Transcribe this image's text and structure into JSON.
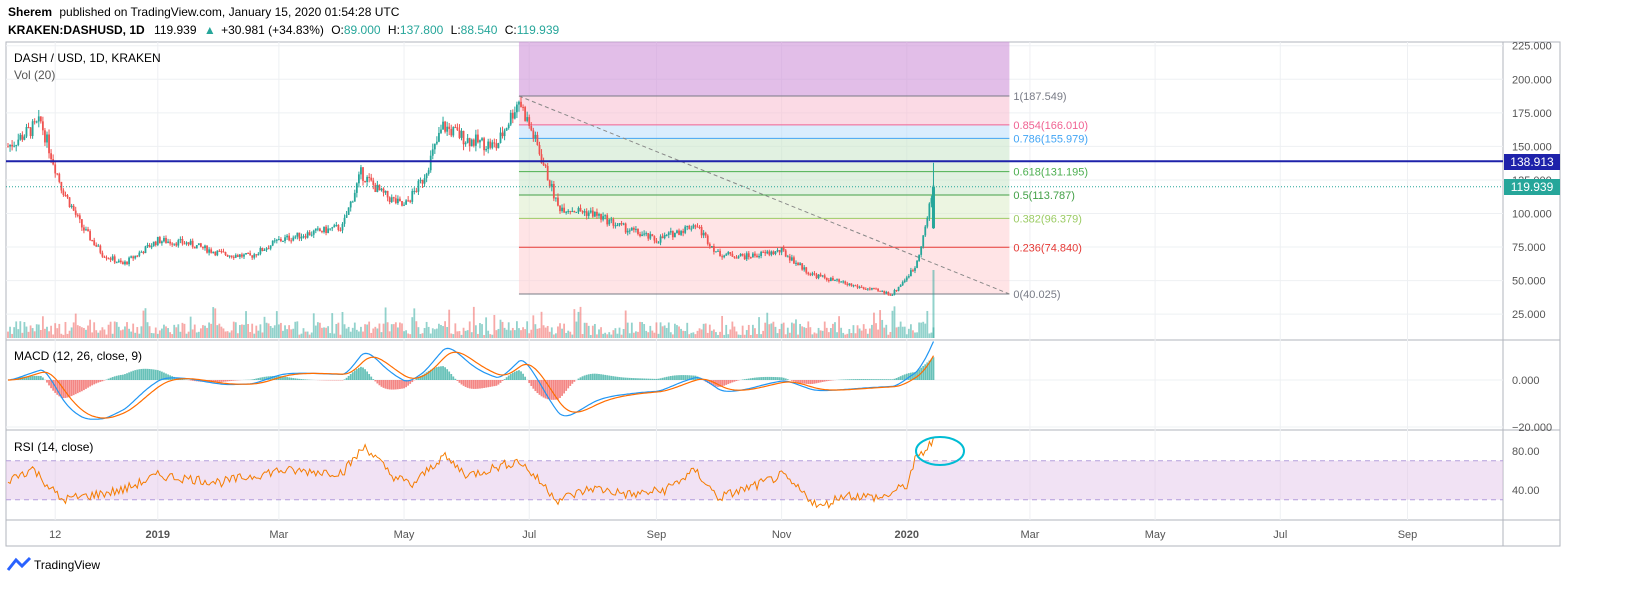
{
  "header": {
    "author": "Sherem",
    "published_text": "published on TradingView.com, January 15, 2020 01:54:28 UTC",
    "symbol": "KRAKEN:DASHUSD, 1D",
    "last": "119.939",
    "change": "+30.981 (+34.83%)",
    "o_label": "O:",
    "o": "89.000",
    "h_label": "H:",
    "h": "137.800",
    "l_label": "L:",
    "l": "88.540",
    "c_label": "C:",
    "c": "119.939"
  },
  "main_pane": {
    "title": "DASH / USD, 1D, KRAKEN",
    "vol_label": "Vol (20)",
    "price_badge_hline": "138.913",
    "price_badge_last": "119.939"
  },
  "macd_pane": {
    "title": "MACD (12, 26, close, 9)"
  },
  "rsi_pane": {
    "title": "RSI (14, close)"
  },
  "footer": {
    "brand": "TradingView"
  },
  "colors": {
    "up": "#26a69a",
    "down": "#ef5350",
    "macd": "#2196f3",
    "signal": "#ff6d00",
    "rsi": "#f57c00",
    "hline": "#1e22aa",
    "annotation": "#00bcd4"
  },
  "chart_data": [
    {
      "type": "candlestick",
      "pane": "price",
      "title": "DASH / USD, 1D, KRAKEN",
      "y_ticks": [
        "225.000",
        "200.000",
        "175.000",
        "150.000",
        "125.000",
        "100.000",
        "75.000",
        "50.000",
        "25.000"
      ],
      "ylim": [
        10,
        228
      ],
      "x_ticks": [
        "12",
        "2019",
        "Mar",
        "May",
        "Jul",
        "Sep",
        "Nov",
        "2020",
        "Mar",
        "May",
        "Jul",
        "Sep"
      ],
      "series_points": [
        [
          "2018-10-20",
          150
        ],
        [
          "2018-11-05",
          168
        ],
        [
          "2018-11-15",
          120
        ],
        [
          "2018-11-25",
          90
        ],
        [
          "2018-12-05",
          70
        ],
        [
          "2018-12-15",
          62
        ],
        [
          "2019-01-01",
          80
        ],
        [
          "2019-01-15",
          78
        ],
        [
          "2019-02-01",
          70
        ],
        [
          "2019-02-15",
          68
        ],
        [
          "2019-03-01",
          80
        ],
        [
          "2019-03-15",
          85
        ],
        [
          "2019-04-01",
          90
        ],
        [
          "2019-04-10",
          130
        ],
        [
          "2019-04-20",
          115
        ],
        [
          "2019-05-01",
          105
        ],
        [
          "2019-05-10",
          125
        ],
        [
          "2019-05-20",
          165
        ],
        [
          "2019-06-01",
          155
        ],
        [
          "2019-06-15",
          150
        ],
        [
          "2019-06-26",
          185
        ],
        [
          "2019-07-05",
          150
        ],
        [
          "2019-07-15",
          105
        ],
        [
          "2019-08-01",
          100
        ],
        [
          "2019-08-15",
          90
        ],
        [
          "2019-09-01",
          80
        ],
        [
          "2019-09-20",
          92
        ],
        [
          "2019-10-01",
          70
        ],
        [
          "2019-10-15",
          68
        ],
        [
          "2019-11-01",
          72
        ],
        [
          "2019-11-15",
          55
        ],
        [
          "2019-12-01",
          48
        ],
        [
          "2019-12-15",
          43
        ],
        [
          "2019-12-25",
          40
        ],
        [
          "2020-01-05",
          60
        ],
        [
          "2020-01-10",
          89
        ],
        [
          "2020-01-14",
          119.939
        ]
      ],
      "volume_note": "Vol (20)",
      "horizontal_line": 138.913,
      "last_price": 119.939,
      "fibonacci": {
        "levels": [
          {
            "label": "1(187.549)",
            "value": 187.549,
            "color": "#787b86"
          },
          {
            "label": "0.854(166.010)",
            "value": 166.01,
            "color": "#f06292"
          },
          {
            "label": "0.786(155.979)",
            "value": 155.979,
            "color": "#42a5f5"
          },
          {
            "label": "0.618(131.195)",
            "value": 131.195,
            "color": "#4caf50"
          },
          {
            "label": "0.5(113.787)",
            "value": 113.787,
            "color": "#43a047"
          },
          {
            "label": "0.382(96.379)",
            "value": 96.379,
            "color": "#9ccc65"
          },
          {
            "label": "0.236(74.840)",
            "value": 74.84,
            "color": "#e53935"
          },
          {
            "label": "0(40.025)",
            "value": 40.025,
            "color": "#787b86"
          }
        ],
        "start": "2019-06-26",
        "end": "2020-02-20"
      },
      "trendline": [
        [
          "2019-06-26",
          187.549
        ],
        [
          "2020-02-20",
          40.025
        ]
      ]
    },
    {
      "type": "line",
      "pane": "macd",
      "title": "MACD (12, 26, close, 9)",
      "y_ticks": [
        "0.000",
        "−20.000"
      ],
      "ylim": [
        -23,
        20
      ]
    },
    {
      "type": "line",
      "pane": "rsi",
      "title": "RSI (14, close)",
      "y_ticks": [
        "80.00",
        "40.00"
      ],
      "ylim": [
        12,
        97
      ],
      "band": [
        30,
        70
      ],
      "points": [
        [
          "2018-10-20",
          50
        ],
        [
          "2018-11-01",
          62
        ],
        [
          "2018-11-15",
          30
        ],
        [
          "2018-12-01",
          35
        ],
        [
          "2018-12-15",
          40
        ],
        [
          "2019-01-01",
          55
        ],
        [
          "2019-02-01",
          48
        ],
        [
          "2019-03-01",
          60
        ],
        [
          "2019-04-01",
          58
        ],
        [
          "2019-04-12",
          85
        ],
        [
          "2019-04-25",
          55
        ],
        [
          "2019-05-05",
          45
        ],
        [
          "2019-05-20",
          75
        ],
        [
          "2019-06-01",
          55
        ],
        [
          "2019-06-26",
          70
        ],
        [
          "2019-07-15",
          30
        ],
        [
          "2019-08-01",
          42
        ],
        [
          "2019-08-20",
          35
        ],
        [
          "2019-09-05",
          40
        ],
        [
          "2019-09-20",
          60
        ],
        [
          "2019-10-01",
          32
        ],
        [
          "2019-10-20",
          45
        ],
        [
          "2019-11-01",
          55
        ],
        [
          "2019-11-20",
          22
        ],
        [
          "2019-12-01",
          35
        ],
        [
          "2019-12-20",
          32
        ],
        [
          "2020-01-01",
          45
        ],
        [
          "2020-01-05",
          70
        ],
        [
          "2020-01-14",
          90
        ]
      ]
    }
  ]
}
